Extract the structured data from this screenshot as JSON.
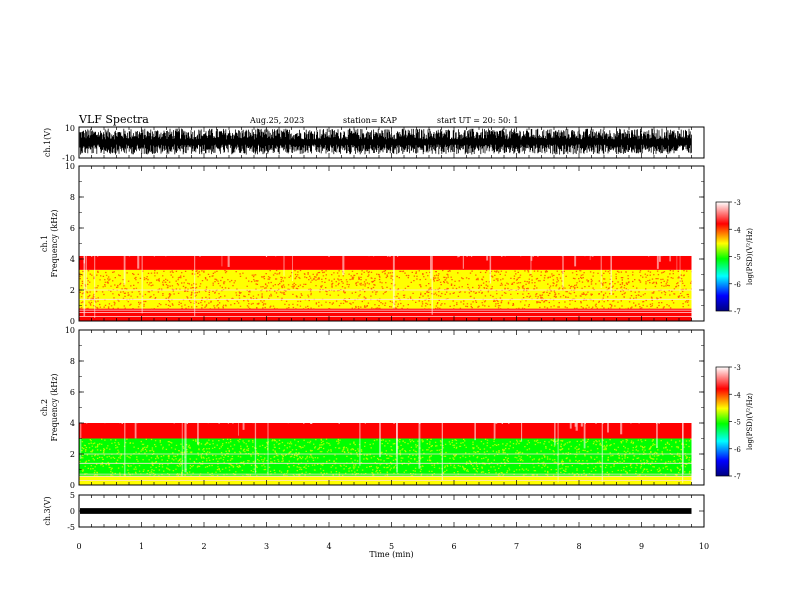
{
  "header": {
    "title": "VLF Spectra",
    "date": "Aug.25, 2023",
    "station": "station= KAP",
    "start": "start  UT  =   20: 50: 1"
  },
  "colors": {
    "spectrogram_background": "#ff0000",
    "waveform": "#000000",
    "colormap": [
      "#000080",
      "#0000ff",
      "#00ffff",
      "#00ff00",
      "#ffff00",
      "#ff0000",
      "#ffffff"
    ]
  },
  "chart_data": [
    {
      "type": "line",
      "name": "ch1-waveform",
      "ylabel": "ch.1(V)",
      "ylim": [
        -10,
        10
      ],
      "y_ticks": [
        "10",
        "-10"
      ],
      "xlim": [
        0,
        10
      ],
      "description_values": "dense oscillation between roughly -5 and +9 V"
    },
    {
      "type": "heatmap",
      "name": "ch1-spectrogram",
      "ylabel": "ch.1\nFrequency (kHz)",
      "ylabel_line1": "ch.1",
      "ylabel_line2": "Frequency (kHz)",
      "ylim": [
        0,
        10
      ],
      "y_ticks": [
        "0",
        "2",
        "4",
        "6",
        "8",
        "10"
      ],
      "xlim": [
        0,
        9.8
      ],
      "colorbar": {
        "label": "log(PSD)(V²/Hz)",
        "range": [
          -7,
          -3
        ],
        "ticks": [
          "-3",
          "-4",
          "-5",
          "-6",
          "-7"
        ]
      },
      "bands": [
        {
          "from": 0.0,
          "to": 0.8,
          "level": -4.0
        },
        {
          "from": 0.8,
          "to": 3.3,
          "level": -4.6
        },
        {
          "from": 3.3,
          "to": 4.2,
          "level": -3.9
        },
        {
          "from": 4.2,
          "to": 10.0,
          "level": -3.3
        }
      ]
    },
    {
      "type": "heatmap",
      "name": "ch2-spectrogram",
      "ylabel": "ch.2\nFrequency (kHz)",
      "ylabel_line1": "ch.2",
      "ylabel_line2": "Frequency (kHz)",
      "ylim": [
        0,
        10
      ],
      "y_ticks": [
        "0",
        "2",
        "4",
        "6",
        "8",
        "10"
      ],
      "xlim": [
        0,
        9.8
      ],
      "colorbar": {
        "label": "log(PSD)(V²/Hz)",
        "range": [
          -7,
          -3
        ],
        "ticks": [
          "-3",
          "-4",
          "-5",
          "-6",
          "-7"
        ]
      },
      "bands": [
        {
          "from": 0.0,
          "to": 0.6,
          "level": -4.3
        },
        {
          "from": 0.6,
          "to": 3.0,
          "level": -5.0
        },
        {
          "from": 3.0,
          "to": 4.0,
          "level": -4.0
        },
        {
          "from": 4.0,
          "to": 10.0,
          "level": -3.3
        }
      ]
    },
    {
      "type": "line",
      "name": "ch3-waveform",
      "ylabel": "ch.3(V)",
      "ylim": [
        -5,
        5
      ],
      "y_ticks": [
        "5",
        "0",
        "-5"
      ],
      "xlim": [
        0,
        10
      ],
      "description_values": "near-constant band around 0 V"
    }
  ],
  "x_axis": {
    "label": "Time (min)",
    "ticks": [
      "0",
      "1",
      "2",
      "3",
      "4",
      "5",
      "6",
      "7",
      "8",
      "9",
      "10"
    ],
    "range": [
      0,
      10
    ]
  }
}
